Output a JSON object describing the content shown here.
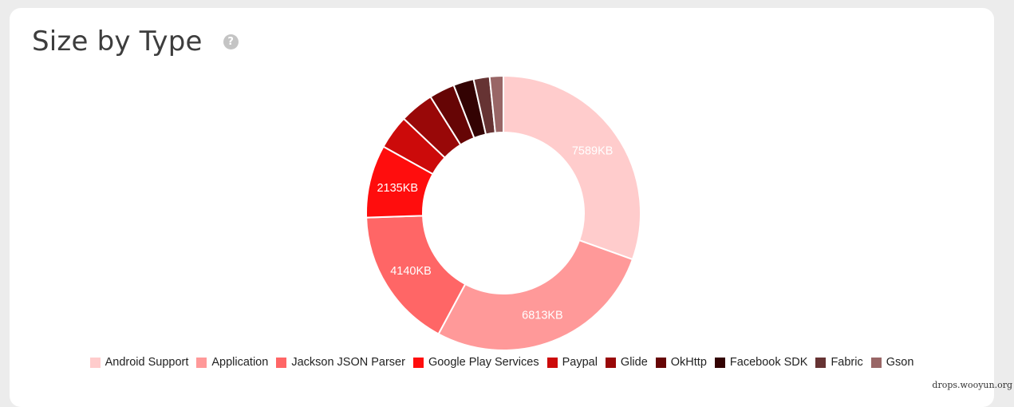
{
  "card": {
    "title": "Size by Type",
    "help_icon": "question-circle-icon",
    "help_glyph": "?"
  },
  "chart_data": {
    "type": "pie",
    "donut": true,
    "categories": [
      "Android Support",
      "Application",
      "Jackson JSON Parser",
      "Google Play Services",
      "Paypal",
      "Glide",
      "OkHttp",
      "Facebook SDK",
      "Fabric",
      "Gson"
    ],
    "values": [
      7589,
      6813,
      4140,
      2135,
      1000,
      1000,
      750,
      600,
      470,
      400
    ],
    "data_labels": [
      "7589KB",
      "6813KB",
      "4140KB",
      "2135KB",
      "",
      "",
      "",
      "",
      "",
      ""
    ],
    "colors": [
      "#ffcccc",
      "#ff9999",
      "#ff6666",
      "#ff0d0d",
      "#cc0a0a",
      "#990808",
      "#660505",
      "#330303",
      "#663333",
      "#996666"
    ],
    "legend_placement": "bottom"
  },
  "watermark": "drops.wooyun.org"
}
